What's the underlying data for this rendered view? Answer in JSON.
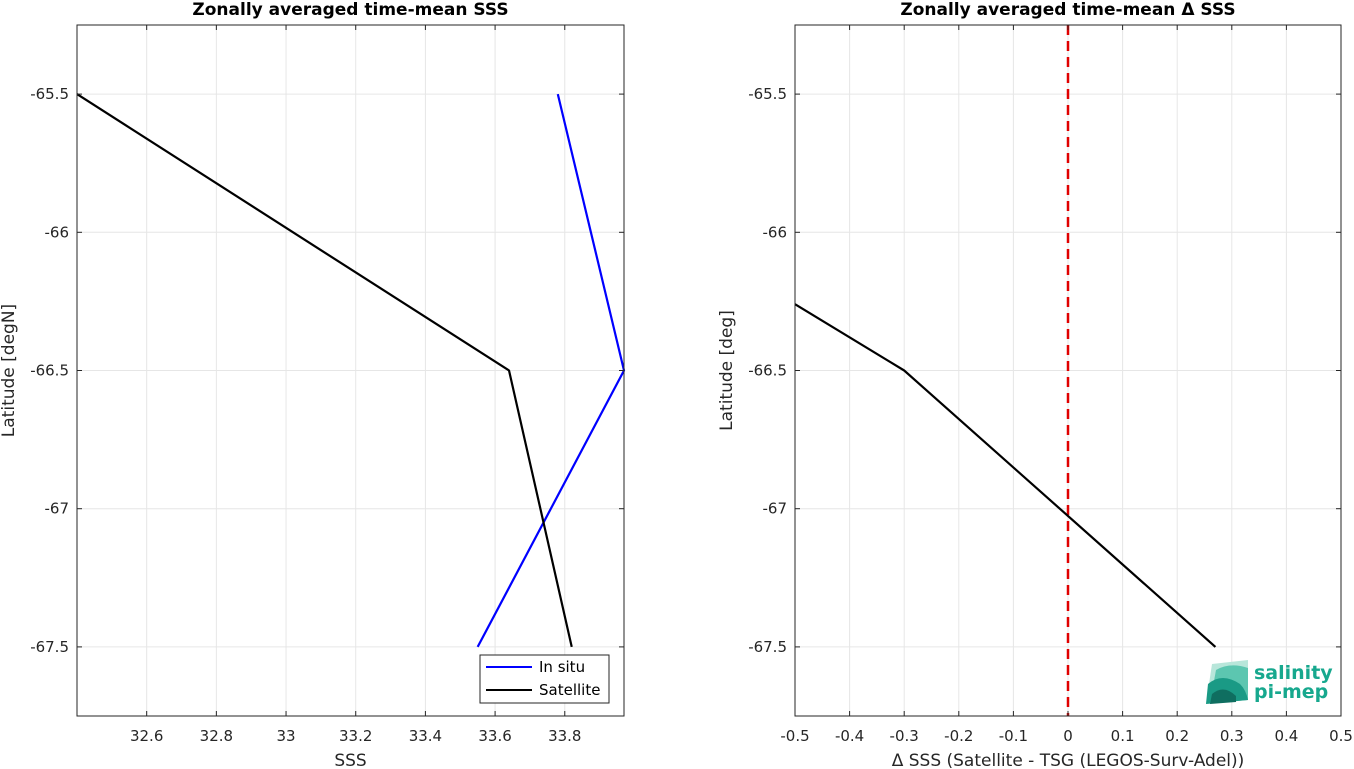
{
  "chart_data": [
    {
      "type": "line",
      "title": "Zonally averaged time-mean SSS",
      "xlabel": "SSS",
      "ylabel": "Latitude [degN]",
      "xlim": [
        32.4,
        33.97
      ],
      "ylim": [
        -67.75,
        -65.25
      ],
      "xticks": [
        32.6,
        32.8,
        33.0,
        33.2,
        33.4,
        33.6,
        33.8
      ],
      "xtick_labels": [
        "32.6",
        "32.8",
        "33",
        "33.2",
        "33.4",
        "33.6",
        "33.8"
      ],
      "yticks": [
        -65.5,
        -66,
        -66.5,
        -67,
        -67.5
      ],
      "ytick_labels": [
        "-65.5",
        "-66",
        "-66.5",
        "-67",
        "-67.5"
      ],
      "grid": true,
      "legend": "bottom-right",
      "series": [
        {
          "name": "In situ",
          "color": "#0000ff",
          "x": [
            33.78,
            33.97,
            33.55
          ],
          "y": [
            -65.5,
            -66.5,
            -67.5
          ]
        },
        {
          "name": "Satellite",
          "color": "#000000",
          "x": [
            32.4,
            33.64,
            33.82
          ],
          "y": [
            -65.5,
            -66.5,
            -67.5
          ]
        }
      ]
    },
    {
      "type": "line",
      "title": "Zonally averaged time-mean Δ SSS",
      "xlabel": "Δ SSS (Satellite - TSG (LEGOS-Surv-Adel))",
      "ylabel": "Latitude [deg]",
      "xlim": [
        -0.5,
        0.5
      ],
      "ylim": [
        -67.75,
        -65.25
      ],
      "xticks": [
        -0.5,
        -0.4,
        -0.3,
        -0.2,
        -0.1,
        0,
        0.1,
        0.2,
        0.3,
        0.4,
        0.5
      ],
      "xtick_labels": [
        "-0.5",
        "-0.4",
        "-0.3",
        "-0.2",
        "-0.1",
        "0",
        "0.1",
        "0.2",
        "0.3",
        "0.4",
        "0.5"
      ],
      "yticks": [
        -65.5,
        -66,
        -66.5,
        -67,
        -67.5
      ],
      "ytick_labels": [
        "-65.5",
        "-66",
        "-66.5",
        "-67",
        "-67.5"
      ],
      "grid": true,
      "reference_line": {
        "x": 0,
        "color": "#e00000",
        "style": "dashed"
      },
      "series": [
        {
          "color": "#000000",
          "x": [
            -0.5,
            -0.3,
            0.27
          ],
          "y": [
            -66.26,
            -66.5,
            -67.5
          ]
        }
      ]
    }
  ],
  "logo": {
    "line1": "salinity",
    "line2": "pi-mep"
  }
}
